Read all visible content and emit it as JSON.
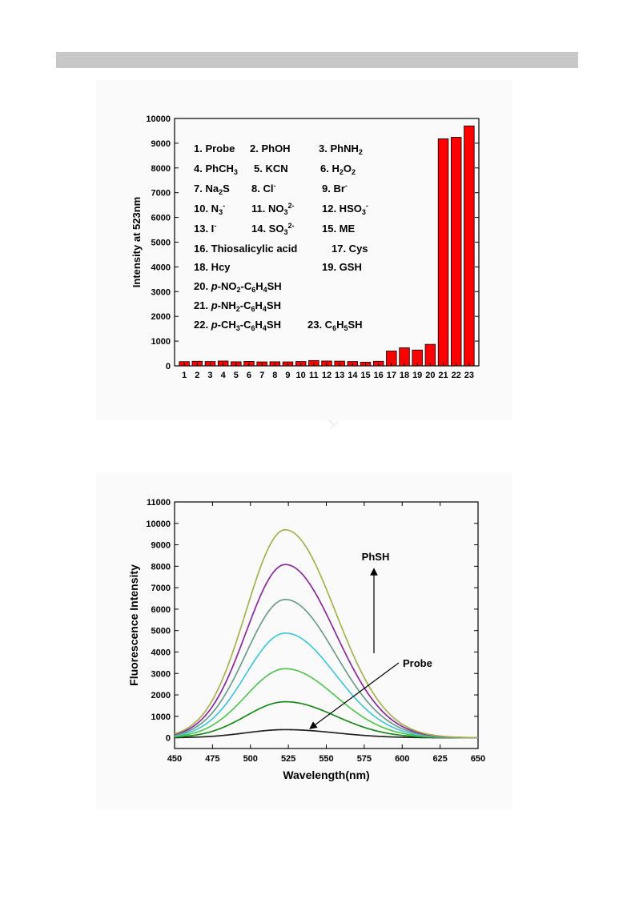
{
  "chart_data": [
    {
      "type": "bar",
      "ylabel": "Intensity at 523nm",
      "xlabel": "",
      "ylim": [
        0,
        10000
      ],
      "ytick_step": 1000,
      "bar_color": "#ff0000",
      "categories": [
        "1",
        "2",
        "3",
        "4",
        "5",
        "6",
        "7",
        "8",
        "9",
        "10",
        "11",
        "12",
        "13",
        "14",
        "15",
        "16",
        "17",
        "18",
        "19",
        "20",
        "21",
        "22",
        "23"
      ],
      "values": [
        170,
        185,
        175,
        195,
        165,
        180,
        160,
        165,
        160,
        175,
        215,
        195,
        190,
        175,
        150,
        185,
        600,
        730,
        640,
        870,
        9180,
        9240,
        9700
      ],
      "legend_entries": [
        [
          {
            "t": "1. Probe"
          }
        ],
        [
          {
            "t": "2. PhOH"
          }
        ],
        [
          {
            "t": "3. PhNH"
          },
          {
            "t": "2",
            "s": "sub"
          }
        ],
        [
          {
            "t": "4. PhCH"
          },
          {
            "t": "3",
            "s": "sub"
          }
        ],
        [
          {
            "t": "5. KCN"
          }
        ],
        [
          {
            "t": "6. H"
          },
          {
            "t": "2",
            "s": "sub"
          },
          {
            "t": "O"
          },
          {
            "t": "2",
            "s": "sub"
          }
        ],
        [
          {
            "t": "7. Na"
          },
          {
            "t": "2",
            "s": "sub"
          },
          {
            "t": "S"
          }
        ],
        [
          {
            "t": "8. Cl"
          },
          {
            "t": "-",
            "s": "sup"
          }
        ],
        [
          {
            "t": "9. Br"
          },
          {
            "t": "-",
            "s": "sup"
          }
        ],
        [
          {
            "t": "10. N"
          },
          {
            "t": "3",
            "s": "sub"
          },
          {
            "t": "-",
            "s": "sup"
          }
        ],
        [
          {
            "t": "11. NO"
          },
          {
            "t": "3",
            "s": "sub"
          },
          {
            "t": "2-",
            "s": "sup"
          }
        ],
        [
          {
            "t": "12. HSO"
          },
          {
            "t": "3",
            "s": "sub"
          },
          {
            "t": "-",
            "s": "sup"
          }
        ],
        [
          {
            "t": "13. I"
          },
          {
            "t": "-",
            "s": "sup"
          }
        ],
        [
          {
            "t": "14. SO"
          },
          {
            "t": "3",
            "s": "sub"
          },
          {
            "t": "2-",
            "s": "sup"
          }
        ],
        [
          {
            "t": "15. ME"
          }
        ],
        [
          {
            "t": "16. Thiosalicylic acid"
          }
        ],
        [
          {
            "t": "17. Cys"
          }
        ],
        [
          {
            "t": "18. Hcy"
          }
        ],
        [
          {
            "t": "19. GSH"
          }
        ],
        [
          {
            "t": "20. "
          },
          {
            "t": "p",
            "s": "it"
          },
          {
            "t": "-NO"
          },
          {
            "t": "2",
            "s": "sub"
          },
          {
            "t": "-C"
          },
          {
            "t": "6",
            "s": "sub"
          },
          {
            "t": "H"
          },
          {
            "t": "4",
            "s": "sub"
          },
          {
            "t": "SH"
          }
        ],
        [
          {
            "t": "21. "
          },
          {
            "t": "p",
            "s": "it"
          },
          {
            "t": "-NH"
          },
          {
            "t": "2",
            "s": "sub"
          },
          {
            "t": "-C"
          },
          {
            "t": "6",
            "s": "sub"
          },
          {
            "t": "H"
          },
          {
            "t": "4",
            "s": "sub"
          },
          {
            "t": "SH"
          }
        ],
        [
          {
            "t": "22. "
          },
          {
            "t": "p",
            "s": "it"
          },
          {
            "t": "-CH"
          },
          {
            "t": "3",
            "s": "sub"
          },
          {
            "t": "-C"
          },
          {
            "t": "6",
            "s": "sub"
          },
          {
            "t": "H"
          },
          {
            "t": "4",
            "s": "sub"
          },
          {
            "t": "SH"
          }
        ],
        [
          {
            "t": "23. C"
          },
          {
            "t": "6",
            "s": "sub"
          },
          {
            "t": "H"
          },
          {
            "t": "5",
            "s": "sub"
          },
          {
            "t": "SH"
          }
        ]
      ]
    },
    {
      "type": "line",
      "xlabel": "Wavelength(nm)",
      "ylabel": "Fluorescence Intensity",
      "xlim": [
        450,
        650
      ],
      "ylim": [
        -500,
        11000
      ],
      "xticks": [
        450,
        475,
        500,
        525,
        550,
        575,
        600,
        625,
        650
      ],
      "yticks": [
        0,
        1000,
        2000,
        3000,
        4000,
        5000,
        6000,
        7000,
        8000,
        9000,
        10000,
        11000
      ],
      "peak_x": 523,
      "series": [
        {
          "color": "#222222",
          "peak": 380
        },
        {
          "color": "#1a8a1a",
          "peak": 1680
        },
        {
          "color": "#55c455",
          "peak": 3220
        },
        {
          "color": "#44c8d8",
          "peak": 4880
        },
        {
          "color": "#6e9c8c",
          "peak": 6450
        },
        {
          "color": "#8a2a9a",
          "peak": 8080
        },
        {
          "color": "#a8b050",
          "peak": 9700
        }
      ],
      "annotations": {
        "top_label": "PhSH",
        "bottom_label": "Probe"
      }
    }
  ],
  "watermark": "M"
}
